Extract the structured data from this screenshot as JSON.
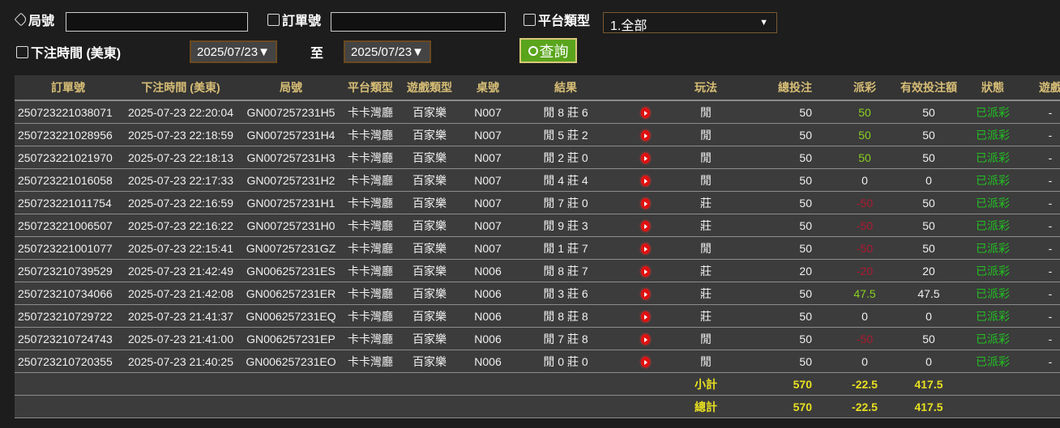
{
  "filters": {
    "round_label": "局號",
    "round_value": "",
    "order_label": "訂單號",
    "order_value": "",
    "platform_label": "平台類型",
    "platform_value": "1.全部",
    "time_label": "下注時間 (美東)",
    "date_from": "2025/07/23▼",
    "to_label": "至",
    "date_to": "2025/07/23▼",
    "query_label": "查詢"
  },
  "table": {
    "headers": [
      "訂單號",
      "下注時間 (美東)",
      "局號",
      "平台類型",
      "遊戲類型",
      "桌號",
      "結果",
      "",
      "玩法",
      "總投注",
      "派彩",
      "有效投注額",
      "狀態",
      "遊戲"
    ],
    "rows": [
      [
        "250723221038071",
        "2025-07-23 22:20:04",
        "GN007257231H5",
        "卡卡灣廳",
        "百家樂",
        "N007",
        "閒 8 莊 6",
        "閒",
        "50",
        "50",
        "50",
        "已派彩",
        "-"
      ],
      [
        "250723221028956",
        "2025-07-23 22:18:59",
        "GN007257231H4",
        "卡卡灣廳",
        "百家樂",
        "N007",
        "閒 5 莊 2",
        "閒",
        "50",
        "50",
        "50",
        "已派彩",
        "-"
      ],
      [
        "250723221021970",
        "2025-07-23 22:18:13",
        "GN007257231H3",
        "卡卡灣廳",
        "百家樂",
        "N007",
        "閒 2 莊 0",
        "閒",
        "50",
        "50",
        "50",
        "已派彩",
        "-"
      ],
      [
        "250723221016058",
        "2025-07-23 22:17:33",
        "GN007257231H2",
        "卡卡灣廳",
        "百家樂",
        "N007",
        "閒 4 莊 4",
        "閒",
        "50",
        "0",
        "0",
        "已派彩",
        "-"
      ],
      [
        "250723221011754",
        "2025-07-23 22:16:59",
        "GN007257231H1",
        "卡卡灣廳",
        "百家樂",
        "N007",
        "閒 7 莊 0",
        "莊",
        "50",
        "-50",
        "50",
        "已派彩",
        "-"
      ],
      [
        "250723221006507",
        "2025-07-23 22:16:22",
        "GN007257231H0",
        "卡卡灣廳",
        "百家樂",
        "N007",
        "閒 9 莊 3",
        "莊",
        "50",
        "-50",
        "50",
        "已派彩",
        "-"
      ],
      [
        "250723221001077",
        "2025-07-23 22:15:41",
        "GN007257231GZ",
        "卡卡灣廳",
        "百家樂",
        "N007",
        "閒 1 莊 7",
        "閒",
        "50",
        "-50",
        "50",
        "已派彩",
        "-"
      ],
      [
        "250723210739529",
        "2025-07-23 21:42:49",
        "GN006257231ES",
        "卡卡灣廳",
        "百家樂",
        "N006",
        "閒 8 莊 7",
        "莊",
        "20",
        "-20",
        "20",
        "已派彩",
        "-"
      ],
      [
        "250723210734066",
        "2025-07-23 21:42:08",
        "GN006257231ER",
        "卡卡灣廳",
        "百家樂",
        "N006",
        "閒 3 莊 6",
        "莊",
        "50",
        "47.5",
        "47.5",
        "已派彩",
        "-"
      ],
      [
        "250723210729722",
        "2025-07-23 21:41:37",
        "GN006257231EQ",
        "卡卡灣廳",
        "百家樂",
        "N006",
        "閒 8 莊 8",
        "莊",
        "50",
        "0",
        "0",
        "已派彩",
        "-"
      ],
      [
        "250723210724743",
        "2025-07-23 21:41:00",
        "GN006257231EP",
        "卡卡灣廳",
        "百家樂",
        "N006",
        "閒 7 莊 8",
        "閒",
        "50",
        "-50",
        "50",
        "已派彩",
        "-"
      ],
      [
        "250723210720355",
        "2025-07-23 21:40:25",
        "GN006257231EO",
        "卡卡灣廳",
        "百家樂",
        "N006",
        "閒 0 莊 0",
        "閒",
        "50",
        "0",
        "0",
        "已派彩",
        "-"
      ]
    ],
    "subtotal": {
      "label": "小計",
      "total_bet": "570",
      "payout": "-22.5",
      "valid_bet": "417.5"
    },
    "grand_total": {
      "label": "總計",
      "total_bet": "570",
      "payout": "-22.5",
      "valid_bet": "417.5"
    }
  },
  "colors": {
    "header_text": "#d7be76",
    "payout_positive": "#8ad020",
    "payout_negative": "#b01830",
    "status": "#22c022",
    "summary": "#e8e020",
    "query_button": "#5aa51c"
  },
  "icons": {
    "round": "tag-icon",
    "order": "clipboard-icon",
    "platform": "list-icon",
    "time": "calendar-icon",
    "replay": "play-icon",
    "query": "search-icon"
  }
}
